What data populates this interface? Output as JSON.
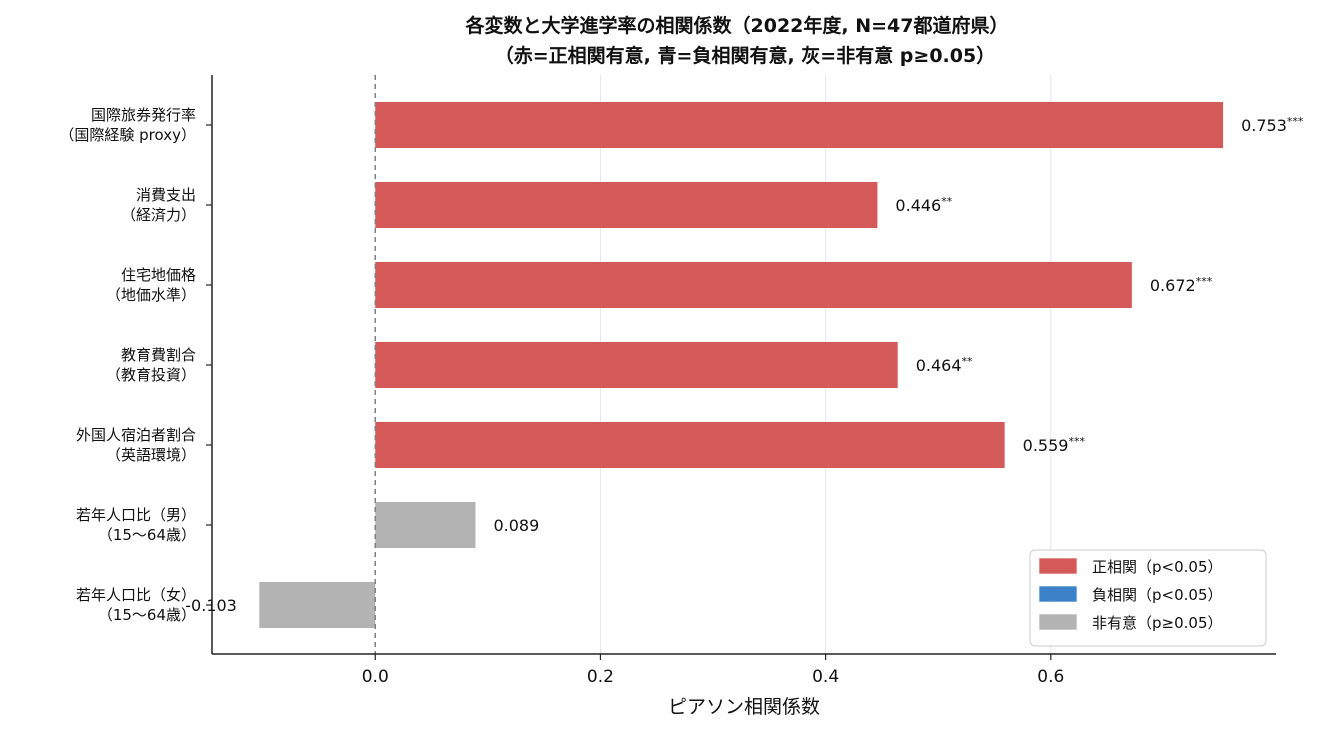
{
  "chart_data": {
    "type": "bar",
    "orientation": "horizontal",
    "title_line1": "各変数と大学進学率の相関係数（2022年度, N=47都道府県）",
    "title_line2": "（赤=正相関有意, 青=負相関有意, 灰=非有意 p≥0.05）",
    "xlabel": "ピアソン相関係数",
    "ylabel": "",
    "xlim": [
      -0.145,
      0.8
    ],
    "xticks": [
      "0.0",
      "0.2",
      "0.4",
      "0.6"
    ],
    "xtick_values": [
      0.0,
      0.2,
      0.4,
      0.6
    ],
    "grid": "vertical",
    "reference_line": 0.0,
    "legend_position": "lower-right",
    "colors": {
      "positive": "#d45a5a",
      "negative": "#3b82c8",
      "ns": "#b3b3b3"
    },
    "legend": [
      {
        "label": "正相関（p<0.05）",
        "key": "positive"
      },
      {
        "label": "負相関（p<0.05）",
        "key": "negative"
      },
      {
        "label": "非有意（p≥0.05）",
        "key": "ns"
      }
    ],
    "bars": [
      {
        "label1": "国際旅券発行率",
        "label2": "（国際経験 proxy）",
        "value": 0.753,
        "value_text": "0.753",
        "sig": "***",
        "category": "positive"
      },
      {
        "label1": "消費支出",
        "label2": "（経済力）",
        "value": 0.446,
        "value_text": "0.446",
        "sig": "**",
        "category": "positive"
      },
      {
        "label1": "住宅地価格",
        "label2": "（地価水準）",
        "value": 0.672,
        "value_text": "0.672",
        "sig": "***",
        "category": "positive"
      },
      {
        "label1": "教育費割合",
        "label2": "（教育投資）",
        "value": 0.464,
        "value_text": "0.464",
        "sig": "**",
        "category": "positive"
      },
      {
        "label1": "外国人宿泊者割合",
        "label2": "（英語環境）",
        "value": 0.559,
        "value_text": "0.559",
        "sig": "***",
        "category": "positive"
      },
      {
        "label1": "若年人口比（男）",
        "label2": "（15～64歳）",
        "value": 0.089,
        "value_text": "0.089",
        "sig": "",
        "category": "ns"
      },
      {
        "label1": "若年人口比（女）",
        "label2": "（15～64歳）",
        "value": -0.103,
        "value_text": "-0.103",
        "sig": "",
        "category": "ns"
      }
    ]
  }
}
